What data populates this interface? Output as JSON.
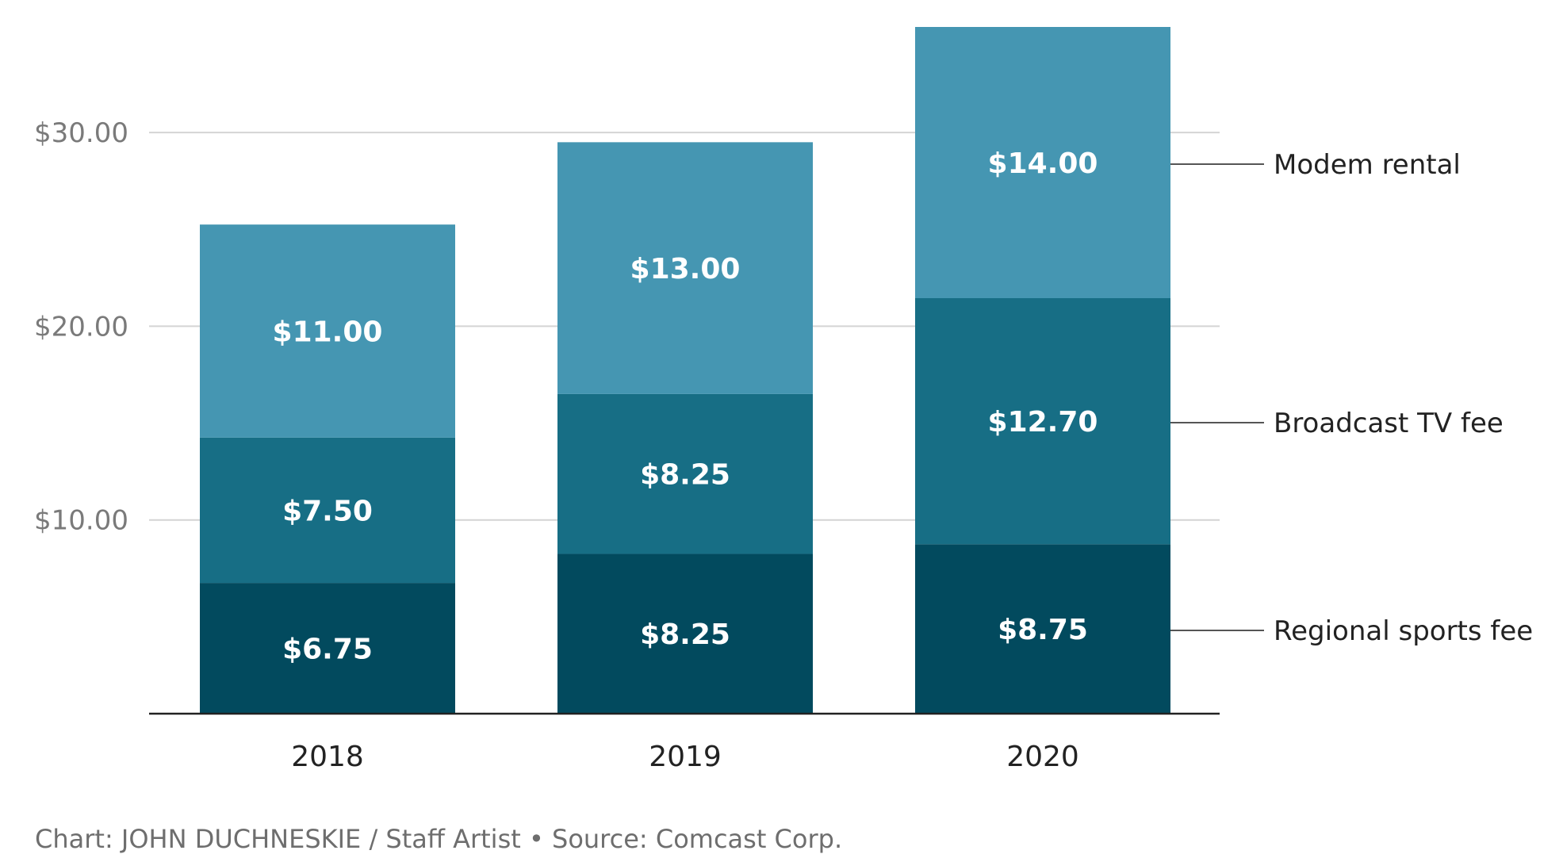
{
  "chart_data": {
    "type": "bar",
    "stacked": true,
    "categories": [
      "2018",
      "2019",
      "2020"
    ],
    "series": [
      {
        "name": "Regional sports fee",
        "values": [
          6.75,
          8.25,
          8.75
        ],
        "labels": [
          "$6.75",
          "$8.25",
          "$8.75"
        ],
        "color": "#024a5e"
      },
      {
        "name": "Broadcast TV fee",
        "values": [
          7.5,
          8.25,
          12.7
        ],
        "labels": [
          "$7.50",
          "$8.25",
          "$12.70"
        ],
        "color": "#176e85"
      },
      {
        "name": "Modem rental",
        "values": [
          11.0,
          13.0,
          14.0
        ],
        "labels": [
          "$11.00",
          "$13.00",
          "$14.00"
        ],
        "color": "#4596b2"
      }
    ],
    "y_ticks": [
      10,
      20,
      30
    ],
    "y_tick_labels": [
      "$10.00",
      "$20.00",
      "$30.00"
    ],
    "ylim": [
      0,
      35.45
    ],
    "grid": true,
    "legend_position": "right, inline with 2020 segments",
    "title": "",
    "xlabel": "",
    "ylabel": ""
  },
  "credit": "Chart: JOHN DUCHNESKIE / Staff Artist • Source: Comcast Corp."
}
